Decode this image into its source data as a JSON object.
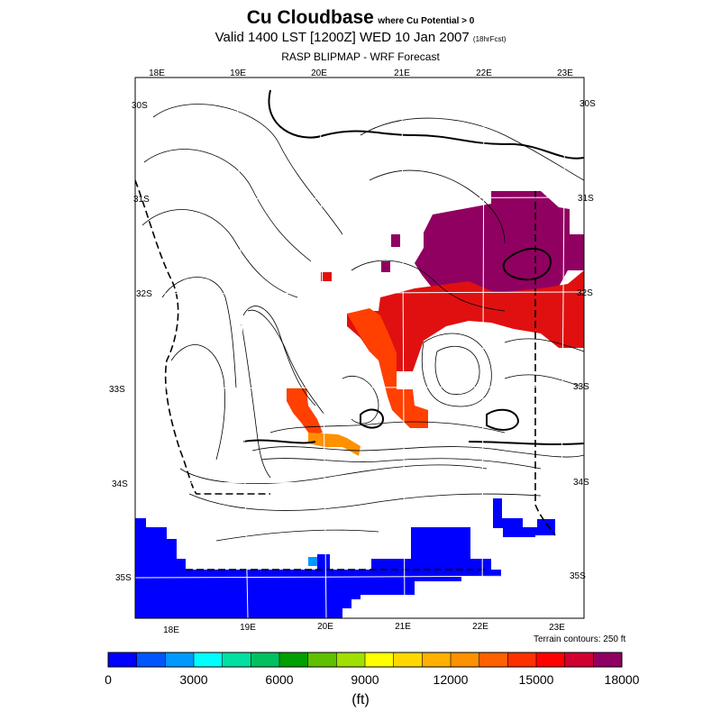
{
  "title": {
    "main": "Cu Cloudbase",
    "qualifier": "where Cu Potential > 0",
    "valid": "Valid 1400 LST [1200Z] WED 10 Jan 2007",
    "forecast": "(18hrFcst)",
    "model": "RASP BLIPMAP - WRF Forecast"
  },
  "axes": {
    "top_lon": [
      "18E",
      "19E",
      "20E",
      "21E",
      "22E",
      "23E"
    ],
    "bottom_lon": [
      "18E",
      "19E",
      "20E",
      "21E",
      "22E",
      "23E"
    ],
    "left_lat": [
      "30S",
      "31S",
      "32S",
      "33S",
      "34S",
      "35S"
    ],
    "right_lat": [
      "30S",
      "31S",
      "32S",
      "33S",
      "34S",
      "35S"
    ]
  },
  "terrain_note": "Terrain contours: 250 ft",
  "colorbar": {
    "labels": [
      "0",
      "3000",
      "6000",
      "9000",
      "12000",
      "15000",
      "18000"
    ],
    "units": "(ft)",
    "min": 0,
    "max": 18000,
    "step": 1000,
    "colors": [
      "#0000ff",
      "#0055ff",
      "#0099ff",
      "#00ffff",
      "#00e0a0",
      "#00c060",
      "#00a000",
      "#60c000",
      "#a0e000",
      "#ffff00",
      "#ffd800",
      "#ffb000",
      "#ff9000",
      "#ff6000",
      "#ff3000",
      "#ff0000",
      "#d00030",
      "#900060"
    ]
  },
  "colors": {
    "cloudbase_high": "#900060",
    "cloudbase_mid": "#e01010",
    "cloudbase_low": "#ff4000",
    "cloudbase_orange": "#ff9000",
    "ocean_low": "#0000ff"
  }
}
